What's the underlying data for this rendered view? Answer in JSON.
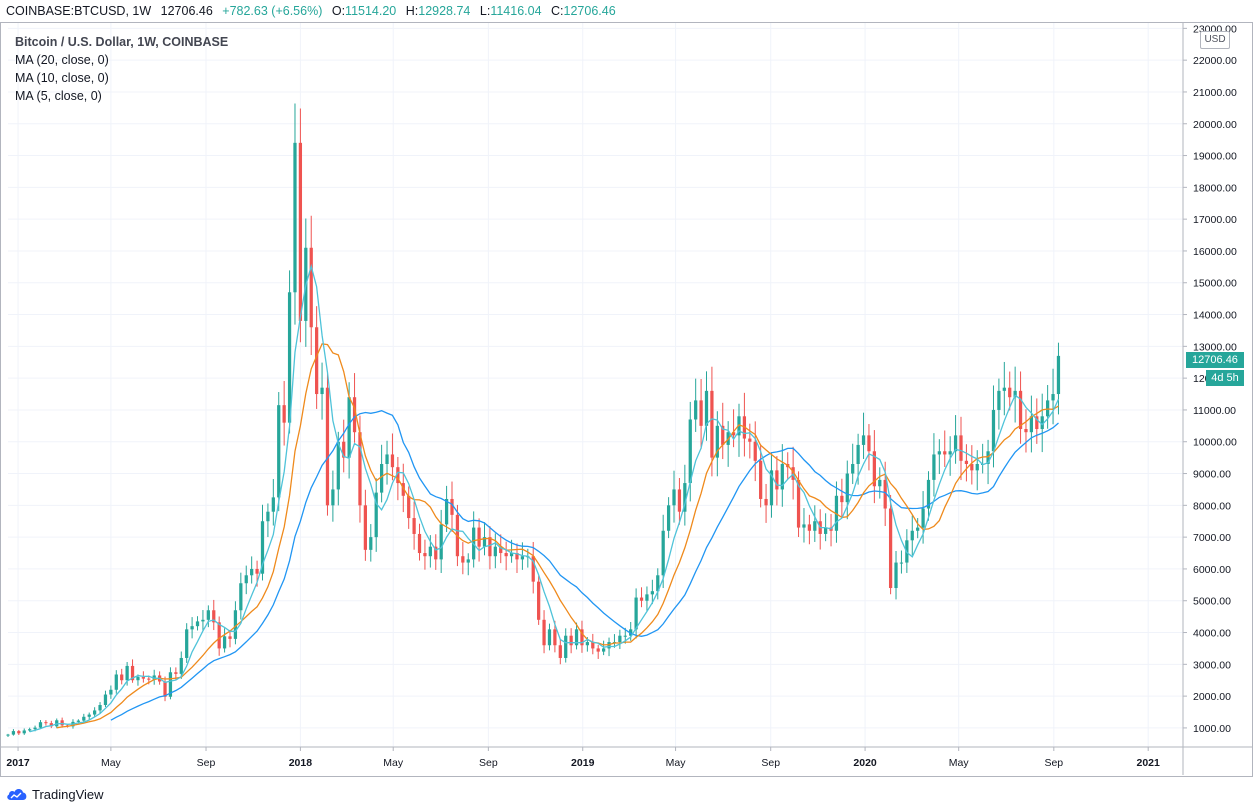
{
  "header": {
    "symbol": "COINBASE:BTCUSD, 1W",
    "last": "12706.46",
    "change": "+782.63 (+6.56%)",
    "o_label": "O:",
    "o": "11514.20",
    "h_label": "H:",
    "h": "12928.74",
    "l_label": "L:",
    "l": "11416.04",
    "c_label": "C:",
    "c": "12706.46"
  },
  "legend": {
    "title": "Bitcoin / U.S. Dollar, 1W, COINBASE",
    "ma20": "MA (20, close, 0)",
    "ma10": "MA (10, close, 0)",
    "ma5": "MA (5, close, 0)"
  },
  "price_axis": {
    "currency": "USD",
    "last_price": "12706.46",
    "countdown": "4d 5h"
  },
  "brand": {
    "name": "TradingView"
  },
  "colors": {
    "up": "#26a69a",
    "down": "#ef5350",
    "ma20": "#2196f3",
    "ma10": "#ef8a1c",
    "ma5": "#4fc3d9",
    "grid": "#f0f3fa",
    "axis": "#b2b5be"
  },
  "chart_data": {
    "type": "candlestick",
    "title": "Bitcoin / U.S. Dollar, 1W, COINBASE",
    "ylim": [
      400,
      23200
    ],
    "x_range": [
      "2016-12-19",
      "2021-02-15"
    ],
    "y_ticks": [
      1000,
      2000,
      3000,
      4000,
      5000,
      6000,
      7000,
      8000,
      9000,
      10000,
      11000,
      12000,
      13000,
      14000,
      15000,
      16000,
      17000,
      18000,
      19000,
      20000,
      21000,
      22000,
      23000
    ],
    "y_tick_labels": [
      "1000.00",
      "2000.00",
      "3000.00",
      "4000.00",
      "5000.00",
      "6000.00",
      "7000.00",
      "8000.00",
      "9000.00",
      "10000.00",
      "11000.00",
      "12000.00",
      "13000.00",
      "14000.00",
      "15000.00",
      "16000.00",
      "17000.00",
      "18000.00",
      "19000.00",
      "20000.00",
      "21000.00",
      "22000.00",
      "23000.00"
    ],
    "x_ticks": [
      {
        "label": "2017",
        "date": "2017-01-01",
        "bold": true
      },
      {
        "label": "May",
        "date": "2017-05-01",
        "bold": false
      },
      {
        "label": "Sep",
        "date": "2017-09-01",
        "bold": false
      },
      {
        "label": "2018",
        "date": "2018-01-01",
        "bold": true
      },
      {
        "label": "May",
        "date": "2018-05-01",
        "bold": false
      },
      {
        "label": "Sep",
        "date": "2018-09-01",
        "bold": false
      },
      {
        "label": "2019",
        "date": "2019-01-01",
        "bold": true
      },
      {
        "label": "May",
        "date": "2019-05-01",
        "bold": false
      },
      {
        "label": "Sep",
        "date": "2019-09-01",
        "bold": false
      },
      {
        "label": "2020",
        "date": "2020-01-01",
        "bold": true
      },
      {
        "label": "May",
        "date": "2020-05-01",
        "bold": false
      },
      {
        "label": "Sep",
        "date": "2020-09-01",
        "bold": false
      },
      {
        "label": "2021",
        "date": "2021-01-01",
        "bold": true
      }
    ],
    "first_week": "2016-12-19",
    "week_closes": [
      790,
      900,
      830,
      920,
      960,
      1010,
      1180,
      1150,
      1050,
      1240,
      1080,
      1050,
      1190,
      1230,
      1350,
      1420,
      1550,
      1720,
      2050,
      2200,
      2680,
      2500,
      2950,
      2500,
      2600,
      2550,
      2520,
      2650,
      2460,
      1980,
      2750,
      2700,
      3200,
      4100,
      4200,
      4350,
      4400,
      4700,
      4320,
      3500,
      3880,
      3800,
      4700,
      5550,
      5800,
      6000,
      5850,
      7500,
      7800,
      8250,
      11150,
      10600,
      14700,
      19400,
      13800,
      16100,
      13600,
      11500,
      11700,
      8000,
      8500,
      10000,
      9500,
      11400,
      10300,
      8000,
      6600,
      7000,
      8400,
      9300,
      9600,
      9200,
      8700,
      8300,
      7600,
      7100,
      6500,
      6400,
      6700,
      6300,
      7400,
      8200,
      7700,
      6400,
      6200,
      6300,
      7300,
      6700,
      7000,
      6400,
      6700,
      6500,
      6400,
      6500,
      6300,
      6400,
      6400,
      5600,
      4400,
      3600,
      4100,
      3600,
      3200,
      3900,
      3600,
      4100,
      3600,
      3700,
      3500,
      3400,
      3500,
      3700,
      3700,
      3900,
      3900,
      4100,
      5100,
      5000,
      5200,
      5300,
      5800,
      7200,
      8000,
      8500,
      7800,
      8700,
      10700,
      11300,
      10500,
      11600,
      9500,
      10500,
      9900,
      10300,
      10200,
      10800,
      10100,
      10000,
      9400,
      8200,
      8000,
      9100,
      8500,
      9300,
      9200,
      8800,
      7300,
      7400,
      7200,
      7500,
      7100,
      7300,
      7200,
      8300,
      8100,
      9000,
      9300,
      9900,
      10200,
      9700,
      8600,
      8800,
      7900,
      5400,
      6200,
      6200,
      6900,
      7200,
      7300,
      7900,
      8800,
      9600,
      9700,
      9600,
      9700,
      10200,
      9400,
      9300,
      9100,
      9300,
      9300,
      9700,
      11000,
      11600,
      11700,
      11400,
      11600,
      10400,
      10300,
      10800,
      10400,
      10800,
      11300,
      11500,
      12700
    ],
    "moving_averages": [
      {
        "name": "MA (20, close, 0)",
        "period": 20
      },
      {
        "name": "MA (10, close, 0)",
        "period": 10
      },
      {
        "name": "MA (5, close, 0)",
        "period": 5
      }
    ]
  }
}
